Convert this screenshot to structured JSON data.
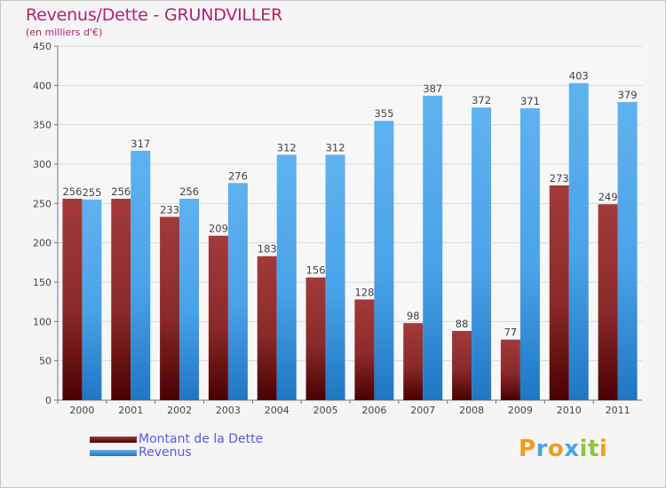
{
  "chart_data": {
    "type": "bar",
    "title": "Revenus/Dette - GRUNDVILLER",
    "subtitle": "(en milliers d'€)",
    "xlabel": "",
    "ylabel": "",
    "ylim": [
      0,
      450
    ],
    "yticks": [
      0,
      50,
      100,
      150,
      200,
      250,
      300,
      350,
      400,
      450
    ],
    "grid": true,
    "legend_position": "bottom-left",
    "categories": [
      "2000",
      "2001",
      "2002",
      "2003",
      "2004",
      "2005",
      "2006",
      "2007",
      "2008",
      "2009",
      "2010",
      "2011"
    ],
    "series": [
      {
        "name": "Montant de la Dette",
        "color": "#7a1e1e",
        "values": [
          256,
          256,
          233,
          209,
          183,
          156,
          128,
          98,
          88,
          77,
          273,
          249
        ]
      },
      {
        "name": "Revenus",
        "color": "#4aa3e8",
        "values": [
          255,
          317,
          256,
          276,
          312,
          312,
          355,
          387,
          372,
          371,
          403,
          379
        ]
      }
    ]
  },
  "brand": {
    "letters": [
      "P",
      "r",
      "o",
      "x",
      "i",
      "t",
      "i"
    ],
    "colors": [
      "#f29b1d",
      "#4aa3e8",
      "#f29b1d",
      "#4aa3e8",
      "#8dc63f",
      "#8dc63f",
      "#f29b1d"
    ]
  }
}
